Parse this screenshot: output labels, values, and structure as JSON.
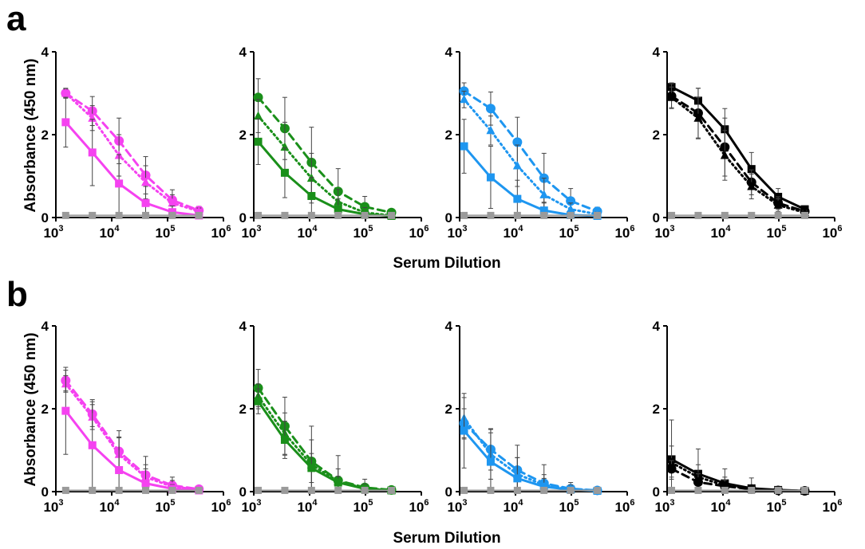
{
  "panels": [
    {
      "letter": "a",
      "ylabel": "Absorbance (450 nm)",
      "xlabel": "Serum Dilution"
    },
    {
      "letter": "b",
      "ylabel": "Absorbance (450 nm)",
      "xlabel": "Serum Dilution"
    }
  ],
  "colors": {
    "magenta": "#f542f0",
    "green": "#1a8f1a",
    "blue": "#1e96f0",
    "black": "#000000",
    "control": "#9a9a9a",
    "errorbar": "#444444"
  },
  "chart_data": [
    {
      "type": "line",
      "panel": "a",
      "color": "magenta",
      "xscale": "log",
      "xlim": [
        1000,
        1000000
      ],
      "ylim": [
        0,
        4
      ],
      "xticks": [
        "10^3",
        "10^4",
        "10^5",
        "10^6"
      ],
      "yticks": [
        "0",
        "2",
        "4"
      ],
      "x": [
        1500,
        4500,
        13500,
        40500,
        121500,
        364500
      ],
      "series": [
        {
          "marker": "circle",
          "style": "dashed",
          "values": [
            3.0,
            2.57,
            1.85,
            1.02,
            0.42,
            0.17
          ],
          "err": [
            0.12,
            0.35,
            0.55,
            0.45,
            0.25,
            0.1
          ]
        },
        {
          "marker": "triangle",
          "style": "dotted",
          "values": [
            3.0,
            2.4,
            1.5,
            0.85,
            0.35,
            0.15
          ],
          "err": [
            0.1,
            0.3,
            0.5,
            0.4,
            0.2,
            0.08
          ]
        },
        {
          "marker": "square",
          "style": "solid",
          "values": [
            2.3,
            1.57,
            0.82,
            0.35,
            0.13,
            0.05
          ],
          "err": [
            0.6,
            0.8,
            0.7,
            0.4,
            0.15,
            0.05
          ]
        },
        {
          "marker": "square",
          "style": "solid",
          "control": true,
          "values": [
            0.05,
            0.05,
            0.05,
            0.05,
            0.05,
            0.05
          ],
          "err": [
            0.03,
            0.03,
            0.03,
            0.03,
            0.03,
            0.03
          ]
        }
      ]
    },
    {
      "type": "line",
      "panel": "a",
      "color": "green",
      "xscale": "log",
      "xlim": [
        1000,
        1000000
      ],
      "ylim": [
        0,
        4
      ],
      "xticks": [
        "10^3",
        "10^4",
        "10^5",
        "10^6"
      ],
      "yticks": [
        "0",
        "2",
        "4"
      ],
      "x": [
        1200,
        3600,
        10800,
        32400,
        97200,
        291600
      ],
      "series": [
        {
          "marker": "circle",
          "style": "dashed",
          "values": [
            2.9,
            2.15,
            1.33,
            0.63,
            0.26,
            0.12
          ],
          "err": [
            0.45,
            0.75,
            0.85,
            0.55,
            0.25,
            0.08
          ]
        },
        {
          "marker": "triangle",
          "style": "dotted",
          "values": [
            2.45,
            1.7,
            0.95,
            0.38,
            0.12,
            0.05
          ],
          "err": [
            0.4,
            0.6,
            0.6,
            0.3,
            0.12,
            0.05
          ]
        },
        {
          "marker": "square",
          "style": "solid",
          "values": [
            1.83,
            1.08,
            0.52,
            0.2,
            0.08,
            0.04
          ],
          "err": [
            0.55,
            0.6,
            0.45,
            0.25,
            0.08,
            0.04
          ]
        },
        {
          "marker": "square",
          "style": "solid",
          "control": true,
          "values": [
            0.05,
            0.05,
            0.05,
            0.05,
            0.05,
            0.05
          ],
          "err": [
            0.03,
            0.03,
            0.03,
            0.03,
            0.03,
            0.03
          ]
        }
      ]
    },
    {
      "type": "line",
      "panel": "a",
      "color": "blue",
      "xscale": "log",
      "xlim": [
        1000,
        1000000
      ],
      "ylim": [
        0,
        4
      ],
      "xticks": [
        "10^3",
        "10^4",
        "10^5",
        "10^6"
      ],
      "yticks": [
        "0",
        "2",
        "4"
      ],
      "x": [
        1200,
        3600,
        10800,
        32400,
        97200,
        291600
      ],
      "series": [
        {
          "marker": "circle",
          "style": "dashed",
          "values": [
            3.05,
            2.63,
            1.82,
            0.95,
            0.4,
            0.15
          ],
          "err": [
            0.2,
            0.4,
            0.6,
            0.6,
            0.3,
            0.1
          ]
        },
        {
          "marker": "triangle",
          "style": "dotted",
          "values": [
            2.85,
            2.1,
            1.25,
            0.55,
            0.2,
            0.08
          ],
          "err": [
            0.2,
            0.35,
            0.5,
            0.4,
            0.15,
            0.05
          ]
        },
        {
          "marker": "square",
          "style": "solid",
          "values": [
            1.72,
            0.97,
            0.45,
            0.17,
            0.06,
            0.04
          ],
          "err": [
            0.65,
            0.75,
            0.45,
            0.2,
            0.06,
            0.03
          ]
        },
        {
          "marker": "square",
          "style": "solid",
          "control": true,
          "values": [
            0.05,
            0.05,
            0.05,
            0.05,
            0.05,
            0.05
          ],
          "err": [
            0.03,
            0.03,
            0.03,
            0.03,
            0.03,
            0.03
          ]
        }
      ]
    },
    {
      "type": "line",
      "panel": "a",
      "color": "black",
      "xscale": "log",
      "xlim": [
        1000,
        1000000
      ],
      "ylim": [
        0,
        4
      ],
      "xticks": [
        "10^3",
        "10^4",
        "10^5",
        "10^6"
      ],
      "yticks": [
        "0",
        "2",
        "4"
      ],
      "x": [
        1200,
        3600,
        10800,
        32400,
        97200,
        291600
      ],
      "series": [
        {
          "marker": "square",
          "style": "solid",
          "values": [
            3.15,
            2.82,
            2.13,
            1.17,
            0.5,
            0.2
          ],
          "err": [
            0.1,
            0.3,
            0.5,
            0.4,
            0.2,
            0.08
          ]
        },
        {
          "marker": "circle",
          "style": "dashed",
          "values": [
            2.93,
            2.52,
            1.7,
            0.85,
            0.35,
            0.15
          ],
          "err": [
            0.3,
            0.6,
            0.7,
            0.3,
            0.15,
            0.05
          ]
        },
        {
          "marker": "triangle",
          "style": "dotted",
          "values": [
            2.9,
            2.4,
            1.5,
            0.75,
            0.3,
            0.12
          ],
          "err": [
            0.25,
            0.5,
            0.6,
            0.3,
            0.15,
            0.05
          ]
        },
        {
          "marker": "square",
          "style": "solid",
          "control": true,
          "values": [
            0.05,
            0.05,
            0.05,
            0.05,
            0.05,
            0.05
          ],
          "err": [
            0.03,
            0.03,
            0.03,
            0.03,
            0.03,
            0.03
          ]
        }
      ]
    },
    {
      "type": "line",
      "panel": "b",
      "color": "magenta",
      "xscale": "log",
      "xlim": [
        1000,
        1000000
      ],
      "ylim": [
        0,
        4
      ],
      "xticks": [
        "10^3",
        "10^4",
        "10^5",
        "10^6"
      ],
      "yticks": [
        "0",
        "2",
        "4"
      ],
      "x": [
        1500,
        4500,
        13500,
        40500,
        121500,
        364500
      ],
      "series": [
        {
          "marker": "circle",
          "style": "dashed",
          "values": [
            2.68,
            1.87,
            0.97,
            0.4,
            0.15,
            0.06
          ],
          "err": [
            0.25,
            0.3,
            0.5,
            0.45,
            0.2,
            0.05
          ]
        },
        {
          "marker": "triangle",
          "style": "dotted",
          "values": [
            2.6,
            1.8,
            0.9,
            0.35,
            0.12,
            0.05
          ],
          "err": [
            0.2,
            0.3,
            0.4,
            0.3,
            0.15,
            0.05
          ]
        },
        {
          "marker": "square",
          "style": "solid",
          "values": [
            1.95,
            1.12,
            0.52,
            0.2,
            0.07,
            0.03
          ],
          "err": [
            1.05,
            1.1,
            0.8,
            0.35,
            0.1,
            0.03
          ]
        },
        {
          "marker": "square",
          "style": "solid",
          "control": true,
          "values": [
            0.03,
            0.03,
            0.03,
            0.03,
            0.03,
            0.03
          ],
          "err": [
            0.02,
            0.02,
            0.02,
            0.02,
            0.02,
            0.02
          ]
        }
      ]
    },
    {
      "type": "line",
      "panel": "b",
      "color": "green",
      "xscale": "log",
      "xlim": [
        1000,
        1000000
      ],
      "ylim": [
        0,
        4
      ],
      "xticks": [
        "10^3",
        "10^4",
        "10^5",
        "10^6"
      ],
      "yticks": [
        "0",
        "2",
        "4"
      ],
      "x": [
        1200,
        3600,
        10800,
        32400,
        97200,
        291600
      ],
      "series": [
        {
          "marker": "circle",
          "style": "dashed",
          "values": [
            2.5,
            1.58,
            0.73,
            0.27,
            0.1,
            0.04
          ],
          "err": [
            0.45,
            0.7,
            0.85,
            0.6,
            0.2,
            0.05
          ]
        },
        {
          "marker": "triangle",
          "style": "dotted",
          "values": [
            2.3,
            1.4,
            0.65,
            0.25,
            0.08,
            0.03
          ],
          "err": [
            0.3,
            0.5,
            0.6,
            0.3,
            0.1,
            0.03
          ]
        },
        {
          "marker": "square",
          "style": "solid",
          "values": [
            2.18,
            1.25,
            0.57,
            0.22,
            0.07,
            0.03
          ],
          "err": [
            0.3,
            0.45,
            0.35,
            0.15,
            0.05,
            0.02
          ]
        },
        {
          "marker": "square",
          "style": "solid",
          "control": true,
          "values": [
            0.03,
            0.03,
            0.03,
            0.03,
            0.03,
            0.03
          ],
          "err": [
            0.02,
            0.02,
            0.02,
            0.02,
            0.02,
            0.02
          ]
        }
      ]
    },
    {
      "type": "line",
      "panel": "b",
      "color": "blue",
      "xscale": "log",
      "xlim": [
        1000,
        1000000
      ],
      "ylim": [
        0,
        4
      ],
      "xticks": [
        "10^3",
        "10^4",
        "10^5",
        "10^6"
      ],
      "yticks": [
        "0",
        "2",
        "4"
      ],
      "x": [
        1200,
        3600,
        10800,
        32400,
        97200,
        291600
      ],
      "series": [
        {
          "marker": "circle",
          "style": "dashed",
          "values": [
            1.65,
            1.02,
            0.52,
            0.2,
            0.07,
            0.03
          ],
          "err": [
            0.35,
            0.5,
            0.6,
            0.45,
            0.15,
            0.04
          ]
        },
        {
          "marker": "triangle",
          "style": "dotted",
          "values": [
            1.77,
            0.9,
            0.42,
            0.16,
            0.06,
            0.03
          ],
          "err": [
            0.5,
            0.6,
            0.4,
            0.25,
            0.1,
            0.03
          ]
        },
        {
          "marker": "square",
          "style": "solid",
          "values": [
            1.47,
            0.72,
            0.32,
            0.12,
            0.05,
            0.02
          ],
          "err": [
            0.9,
            0.7,
            0.5,
            0.2,
            0.06,
            0.02
          ]
        },
        {
          "marker": "square",
          "style": "solid",
          "control": true,
          "values": [
            0.03,
            0.03,
            0.03,
            0.03,
            0.03,
            0.03
          ],
          "err": [
            0.02,
            0.02,
            0.02,
            0.02,
            0.02,
            0.02
          ]
        }
      ]
    },
    {
      "type": "line",
      "panel": "b",
      "color": "black",
      "xscale": "log",
      "xlim": [
        1000,
        1000000
      ],
      "ylim": [
        0,
        4
      ],
      "xticks": [
        "10^3",
        "10^4",
        "10^5",
        "10^6"
      ],
      "yticks": [
        "0",
        "2",
        "4"
      ],
      "x": [
        1200,
        3600,
        10800,
        32400,
        97200,
        291600
      ],
      "series": [
        {
          "marker": "square",
          "style": "solid",
          "values": [
            0.78,
            0.43,
            0.2,
            0.08,
            0.04,
            0.02
          ],
          "err": [
            0.95,
            0.6,
            0.35,
            0.25,
            0.06,
            0.02
          ]
        },
        {
          "marker": "triangle",
          "style": "dotted",
          "values": [
            0.7,
            0.35,
            0.15,
            0.06,
            0.03,
            0.02
          ],
          "err": [
            0.4,
            0.3,
            0.2,
            0.1,
            0.04,
            0.02
          ]
        },
        {
          "marker": "circle",
          "style": "dashed",
          "values": [
            0.55,
            0.23,
            0.13,
            0.06,
            0.03,
            0.02
          ],
          "err": [
            0.2,
            0.2,
            0.15,
            0.1,
            0.04,
            0.02
          ]
        },
        {
          "marker": "square",
          "style": "solid",
          "control": true,
          "values": [
            0.03,
            0.03,
            0.03,
            0.03,
            0.03,
            0.03
          ],
          "err": [
            0.02,
            0.02,
            0.02,
            0.02,
            0.02,
            0.02
          ]
        }
      ]
    }
  ]
}
